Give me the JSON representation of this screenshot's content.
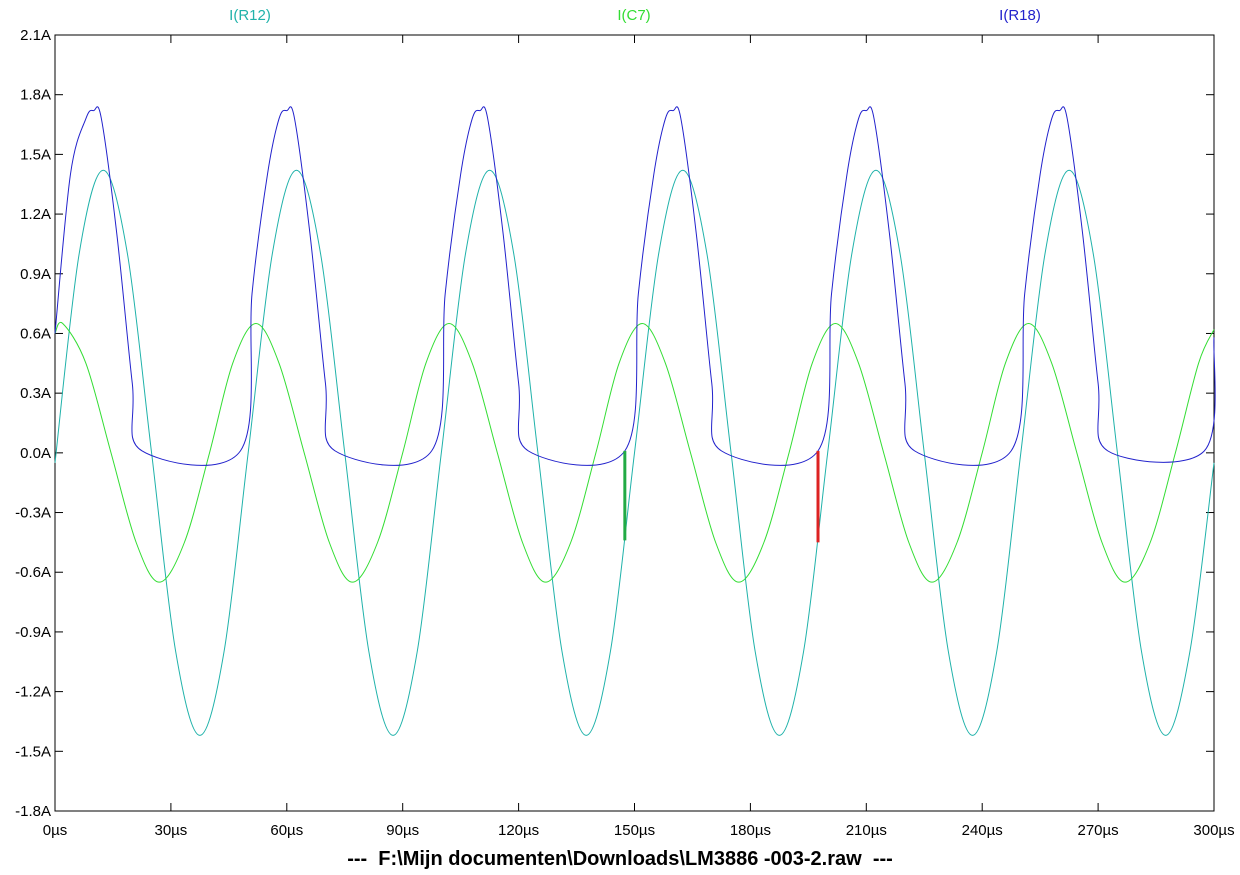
{
  "window": {
    "file_title": "---  F:\\Mijn documenten\\Downloads\\LM3886 -003-2.raw  ---"
  },
  "chart_data": {
    "type": "line",
    "title": "",
    "xlabel": "",
    "ylabel": "",
    "xlim": [
      0,
      300
    ],
    "ylim": [
      -1.8,
      2.1
    ],
    "x_unit": "µs",
    "y_unit": "A",
    "x_ticks": [
      0,
      30,
      60,
      90,
      120,
      150,
      180,
      210,
      240,
      270,
      300
    ],
    "x_tick_labels": [
      "0µs",
      "30µs",
      "60µs",
      "90µs",
      "120µs",
      "150µs",
      "180µs",
      "210µs",
      "240µs",
      "270µs",
      "300µs"
    ],
    "y_ticks": [
      2.1,
      1.8,
      1.5,
      1.2,
      0.9,
      0.6,
      0.3,
      0.0,
      -0.3,
      -0.6,
      -0.9,
      -1.2,
      -1.5,
      -1.8
    ],
    "y_tick_labels": [
      "2.1A",
      "1.8A",
      "1.5A",
      "1.2A",
      "0.9A",
      "0.6A",
      "0.3A",
      "0.0A",
      "-0.3A",
      "-0.6A",
      "-0.9A",
      "-1.2A",
      "-1.5A",
      "-1.8A"
    ],
    "grid": false,
    "legend": "top",
    "series": [
      {
        "name": "I(R12)",
        "color": "#20b2aa",
        "x": [
          0,
          6.25,
          12.5,
          18.75,
          25,
          31.25,
          37.5,
          43.75,
          50,
          56.25,
          62.5,
          68.75,
          75,
          81.25,
          87.5,
          93.75,
          100,
          106.25,
          112.5,
          118.75,
          125,
          131.25,
          137.5,
          143.75,
          150,
          156.25,
          162.5,
          168.75,
          175,
          181.25,
          187.5,
          193.75,
          200,
          206.25,
          212.5,
          218.75,
          225,
          231.25,
          237.5,
          243.75,
          250,
          256.25,
          262.5,
          268.75,
          275,
          281.25,
          287.5,
          293.75,
          300
        ],
        "y": [
          -0.05,
          1.0,
          1.42,
          1.0,
          0.0,
          -1.0,
          -1.42,
          -1.0,
          0.0,
          1.0,
          1.42,
          1.0,
          0.0,
          -1.0,
          -1.42,
          -1.0,
          0.0,
          1.0,
          1.42,
          1.0,
          0.0,
          -1.0,
          -1.42,
          -1.0,
          0.0,
          1.0,
          1.42,
          1.0,
          0.0,
          -1.0,
          -1.42,
          -1.0,
          0.0,
          1.0,
          1.42,
          1.0,
          0.0,
          -1.0,
          -1.42,
          -1.0,
          0.0,
          1.0,
          1.42,
          1.0,
          0.0,
          -1.0,
          -1.42,
          -1.0,
          -0.05
        ]
      },
      {
        "name": "I(C7)",
        "color": "#33dd33",
        "x": [
          0,
          2,
          8,
          14.5,
          21,
          27,
          33.5,
          40,
          46,
          52,
          58,
          64.5,
          71,
          77,
          83.5,
          90,
          96,
          102,
          108,
          114.5,
          121,
          127,
          133.5,
          140,
          146,
          152,
          158,
          164.5,
          171,
          177,
          183.5,
          190,
          196,
          202,
          208,
          214.5,
          221,
          227,
          233.5,
          240,
          246,
          252,
          258,
          264.5,
          271,
          277,
          283.5,
          290,
          296,
          300
        ],
        "y": [
          0.6,
          0.65,
          0.45,
          0.0,
          -0.45,
          -0.65,
          -0.45,
          0.0,
          0.45,
          0.65,
          0.45,
          0.0,
          -0.45,
          -0.65,
          -0.45,
          0.0,
          0.45,
          0.65,
          0.45,
          0.0,
          -0.45,
          -0.65,
          -0.45,
          0.0,
          0.45,
          0.65,
          0.45,
          0.0,
          -0.45,
          -0.65,
          -0.45,
          0.0,
          0.45,
          0.65,
          0.45,
          0.0,
          -0.45,
          -0.65,
          -0.45,
          0.0,
          0.45,
          0.65,
          0.45,
          0.0,
          -0.45,
          -0.65,
          -0.45,
          0.0,
          0.45,
          0.62
        ]
      },
      {
        "name": "I(R18)",
        "color": "#2222cc",
        "x": [
          0,
          4,
          8,
          10,
          12,
          16,
          20,
          22.5,
          48,
          51,
          55,
          58,
          60,
          62,
          66,
          70,
          72.5,
          97.5,
          101,
          105,
          108,
          110,
          112,
          116,
          120,
          122.5,
          147.5,
          151,
          155,
          158,
          160,
          162,
          166,
          170,
          172.5,
          197.5,
          201,
          205,
          208,
          210,
          212,
          216,
          220,
          222.5,
          247.5,
          251,
          255,
          258,
          260,
          262,
          266,
          270,
          272.5,
          297.5,
          300
        ],
        "y": [
          0.6,
          1.4,
          1.68,
          1.72,
          1.68,
          1.1,
          0.35,
          0.01,
          0.01,
          0.8,
          1.4,
          1.68,
          1.72,
          1.68,
          1.1,
          0.35,
          0.01,
          0.01,
          0.8,
          1.4,
          1.68,
          1.72,
          1.68,
          1.1,
          0.35,
          0.01,
          0.01,
          0.8,
          1.4,
          1.68,
          1.72,
          1.68,
          1.1,
          0.35,
          0.01,
          0.01,
          0.8,
          1.4,
          1.68,
          1.72,
          1.68,
          1.1,
          0.35,
          0.01,
          0.01,
          0.8,
          1.4,
          1.68,
          1.72,
          1.68,
          1.1,
          0.35,
          0.01,
          0.01,
          0.58
        ]
      }
    ],
    "cursors": [
      {
        "x": 147.5,
        "y_top": 0.01,
        "y_bottom": -0.44,
        "color": "#22aa44"
      },
      {
        "x": 197.5,
        "y_top": 0.01,
        "y_bottom": -0.45,
        "color": "#dd2222"
      }
    ]
  }
}
